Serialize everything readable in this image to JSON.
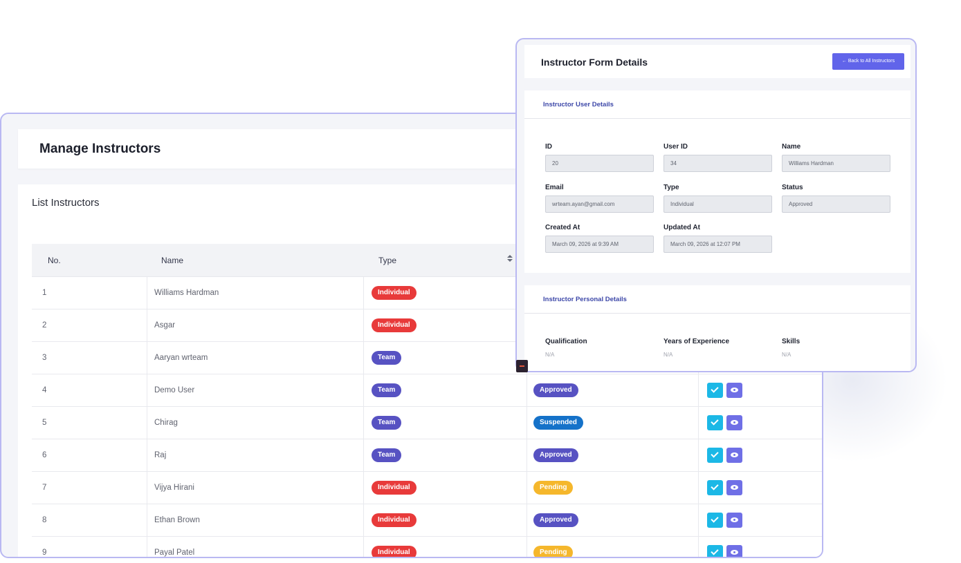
{
  "manage": {
    "title": "Manage Instructors",
    "list_title": "List Instructors",
    "columns": {
      "no": "No.",
      "name": "Name",
      "type": "Type"
    },
    "rows": [
      {
        "no": "1",
        "name": "Williams Hardman",
        "type": "Individual"
      },
      {
        "no": "2",
        "name": "Asgar",
        "type": "Individual"
      },
      {
        "no": "3",
        "name": "Aaryan wrteam",
        "type": "Team"
      },
      {
        "no": "4",
        "name": "Demo User",
        "type": "Team",
        "status": "Approved"
      },
      {
        "no": "5",
        "name": "Chirag",
        "type": "Team",
        "status": "Suspended"
      },
      {
        "no": "6",
        "name": "Raj",
        "type": "Team",
        "status": "Approved"
      },
      {
        "no": "7",
        "name": "Vijya Hirani",
        "type": "Individual",
        "status": "Pending"
      },
      {
        "no": "8",
        "name": "Ethan Brown",
        "type": "Individual",
        "status": "Approved"
      },
      {
        "no": "9",
        "name": "Payal Patel",
        "type": "Individual",
        "status": "Pending"
      }
    ],
    "colors": {
      "individual": "#e83a3a",
      "team": "#5752c2",
      "approved": "#5752c2",
      "suspended": "#1572c9",
      "pending": "#f5b72c"
    },
    "action_icons": [
      "check-icon",
      "eye-icon"
    ]
  },
  "details": {
    "title": "Instructor Form Details",
    "back_button": "← Back to All Instructors",
    "user_section": {
      "title": "Instructor User Details",
      "labels": {
        "id": "ID",
        "user_id": "User ID",
        "name": "Name",
        "email": "Email",
        "type": "Type",
        "status": "Status",
        "created_at": "Created At",
        "updated_at": "Updated At"
      },
      "values": {
        "id": "20",
        "user_id": "34",
        "name": "Williams Hardman",
        "email": "wrteam.ayan@gmail.com",
        "type": "Individual",
        "status": "Approved",
        "created_at": "March 09, 2026 at 9:39 AM",
        "updated_at": "March 09, 2026 at 12:07 PM"
      }
    },
    "personal_section": {
      "title": "Instructor Personal Details",
      "labels": {
        "qualification": "Qualification",
        "experience": "Years of Experience",
        "skills": "Skills"
      },
      "values": {
        "qualification": "N/A",
        "experience": "N/A",
        "skills": "N/A"
      }
    }
  }
}
